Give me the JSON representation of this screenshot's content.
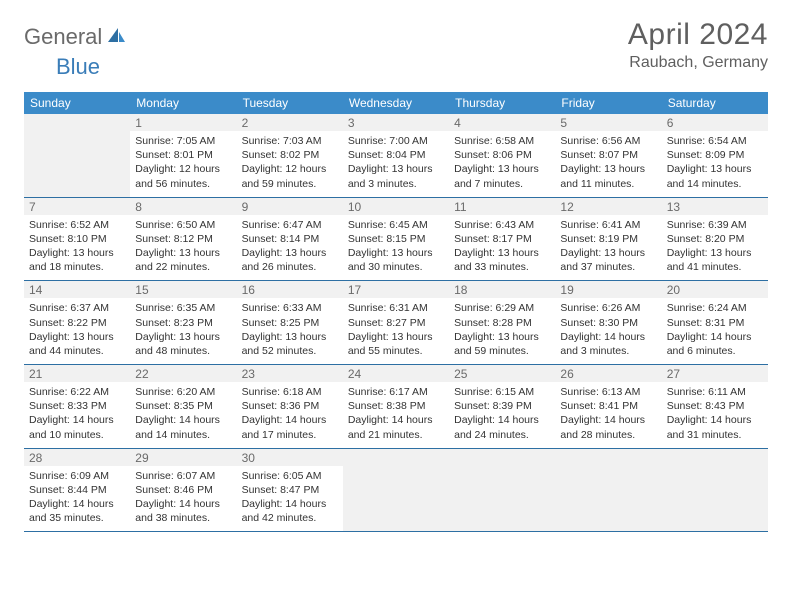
{
  "logo": {
    "text1": "General",
    "text2": "Blue"
  },
  "header": {
    "title": "April 2024",
    "location": "Raubach, Germany"
  },
  "colors": {
    "header_bg": "#3b8bc9",
    "header_text": "#ffffff",
    "daynum_bg": "#f1f1f1",
    "daynum_text": "#6a6a6a",
    "divider": "#2d6fa3",
    "title_text": "#5f5f5f"
  },
  "dow": [
    "Sunday",
    "Monday",
    "Tuesday",
    "Wednesday",
    "Thursday",
    "Friday",
    "Saturday"
  ],
  "weeks": [
    {
      "nums": [
        "",
        "1",
        "2",
        "3",
        "4",
        "5",
        "6"
      ],
      "cells": [
        null,
        {
          "l1": "Sunrise: 7:05 AM",
          "l2": "Sunset: 8:01 PM",
          "l3": "Daylight: 12 hours",
          "l4": "and 56 minutes."
        },
        {
          "l1": "Sunrise: 7:03 AM",
          "l2": "Sunset: 8:02 PM",
          "l3": "Daylight: 12 hours",
          "l4": "and 59 minutes."
        },
        {
          "l1": "Sunrise: 7:00 AM",
          "l2": "Sunset: 8:04 PM",
          "l3": "Daylight: 13 hours",
          "l4": "and 3 minutes."
        },
        {
          "l1": "Sunrise: 6:58 AM",
          "l2": "Sunset: 8:06 PM",
          "l3": "Daylight: 13 hours",
          "l4": "and 7 minutes."
        },
        {
          "l1": "Sunrise: 6:56 AM",
          "l2": "Sunset: 8:07 PM",
          "l3": "Daylight: 13 hours",
          "l4": "and 11 minutes."
        },
        {
          "l1": "Sunrise: 6:54 AM",
          "l2": "Sunset: 8:09 PM",
          "l3": "Daylight: 13 hours",
          "l4": "and 14 minutes."
        }
      ]
    },
    {
      "nums": [
        "7",
        "8",
        "9",
        "10",
        "11",
        "12",
        "13"
      ],
      "cells": [
        {
          "l1": "Sunrise: 6:52 AM",
          "l2": "Sunset: 8:10 PM",
          "l3": "Daylight: 13 hours",
          "l4": "and 18 minutes."
        },
        {
          "l1": "Sunrise: 6:50 AM",
          "l2": "Sunset: 8:12 PM",
          "l3": "Daylight: 13 hours",
          "l4": "and 22 minutes."
        },
        {
          "l1": "Sunrise: 6:47 AM",
          "l2": "Sunset: 8:14 PM",
          "l3": "Daylight: 13 hours",
          "l4": "and 26 minutes."
        },
        {
          "l1": "Sunrise: 6:45 AM",
          "l2": "Sunset: 8:15 PM",
          "l3": "Daylight: 13 hours",
          "l4": "and 30 minutes."
        },
        {
          "l1": "Sunrise: 6:43 AM",
          "l2": "Sunset: 8:17 PM",
          "l3": "Daylight: 13 hours",
          "l4": "and 33 minutes."
        },
        {
          "l1": "Sunrise: 6:41 AM",
          "l2": "Sunset: 8:19 PM",
          "l3": "Daylight: 13 hours",
          "l4": "and 37 minutes."
        },
        {
          "l1": "Sunrise: 6:39 AM",
          "l2": "Sunset: 8:20 PM",
          "l3": "Daylight: 13 hours",
          "l4": "and 41 minutes."
        }
      ]
    },
    {
      "nums": [
        "14",
        "15",
        "16",
        "17",
        "18",
        "19",
        "20"
      ],
      "cells": [
        {
          "l1": "Sunrise: 6:37 AM",
          "l2": "Sunset: 8:22 PM",
          "l3": "Daylight: 13 hours",
          "l4": "and 44 minutes."
        },
        {
          "l1": "Sunrise: 6:35 AM",
          "l2": "Sunset: 8:23 PM",
          "l3": "Daylight: 13 hours",
          "l4": "and 48 minutes."
        },
        {
          "l1": "Sunrise: 6:33 AM",
          "l2": "Sunset: 8:25 PM",
          "l3": "Daylight: 13 hours",
          "l4": "and 52 minutes."
        },
        {
          "l1": "Sunrise: 6:31 AM",
          "l2": "Sunset: 8:27 PM",
          "l3": "Daylight: 13 hours",
          "l4": "and 55 minutes."
        },
        {
          "l1": "Sunrise: 6:29 AM",
          "l2": "Sunset: 8:28 PM",
          "l3": "Daylight: 13 hours",
          "l4": "and 59 minutes."
        },
        {
          "l1": "Sunrise: 6:26 AM",
          "l2": "Sunset: 8:30 PM",
          "l3": "Daylight: 14 hours",
          "l4": "and 3 minutes."
        },
        {
          "l1": "Sunrise: 6:24 AM",
          "l2": "Sunset: 8:31 PM",
          "l3": "Daylight: 14 hours",
          "l4": "and 6 minutes."
        }
      ]
    },
    {
      "nums": [
        "21",
        "22",
        "23",
        "24",
        "25",
        "26",
        "27"
      ],
      "cells": [
        {
          "l1": "Sunrise: 6:22 AM",
          "l2": "Sunset: 8:33 PM",
          "l3": "Daylight: 14 hours",
          "l4": "and 10 minutes."
        },
        {
          "l1": "Sunrise: 6:20 AM",
          "l2": "Sunset: 8:35 PM",
          "l3": "Daylight: 14 hours",
          "l4": "and 14 minutes."
        },
        {
          "l1": "Sunrise: 6:18 AM",
          "l2": "Sunset: 8:36 PM",
          "l3": "Daylight: 14 hours",
          "l4": "and 17 minutes."
        },
        {
          "l1": "Sunrise: 6:17 AM",
          "l2": "Sunset: 8:38 PM",
          "l3": "Daylight: 14 hours",
          "l4": "and 21 minutes."
        },
        {
          "l1": "Sunrise: 6:15 AM",
          "l2": "Sunset: 8:39 PM",
          "l3": "Daylight: 14 hours",
          "l4": "and 24 minutes."
        },
        {
          "l1": "Sunrise: 6:13 AM",
          "l2": "Sunset: 8:41 PM",
          "l3": "Daylight: 14 hours",
          "l4": "and 28 minutes."
        },
        {
          "l1": "Sunrise: 6:11 AM",
          "l2": "Sunset: 8:43 PM",
          "l3": "Daylight: 14 hours",
          "l4": "and 31 minutes."
        }
      ]
    },
    {
      "nums": [
        "28",
        "29",
        "30",
        "",
        "",
        "",
        ""
      ],
      "cells": [
        {
          "l1": "Sunrise: 6:09 AM",
          "l2": "Sunset: 8:44 PM",
          "l3": "Daylight: 14 hours",
          "l4": "and 35 minutes."
        },
        {
          "l1": "Sunrise: 6:07 AM",
          "l2": "Sunset: 8:46 PM",
          "l3": "Daylight: 14 hours",
          "l4": "and 38 minutes."
        },
        {
          "l1": "Sunrise: 6:05 AM",
          "l2": "Sunset: 8:47 PM",
          "l3": "Daylight: 14 hours",
          "l4": "and 42 minutes."
        },
        null,
        null,
        null,
        null
      ]
    }
  ]
}
